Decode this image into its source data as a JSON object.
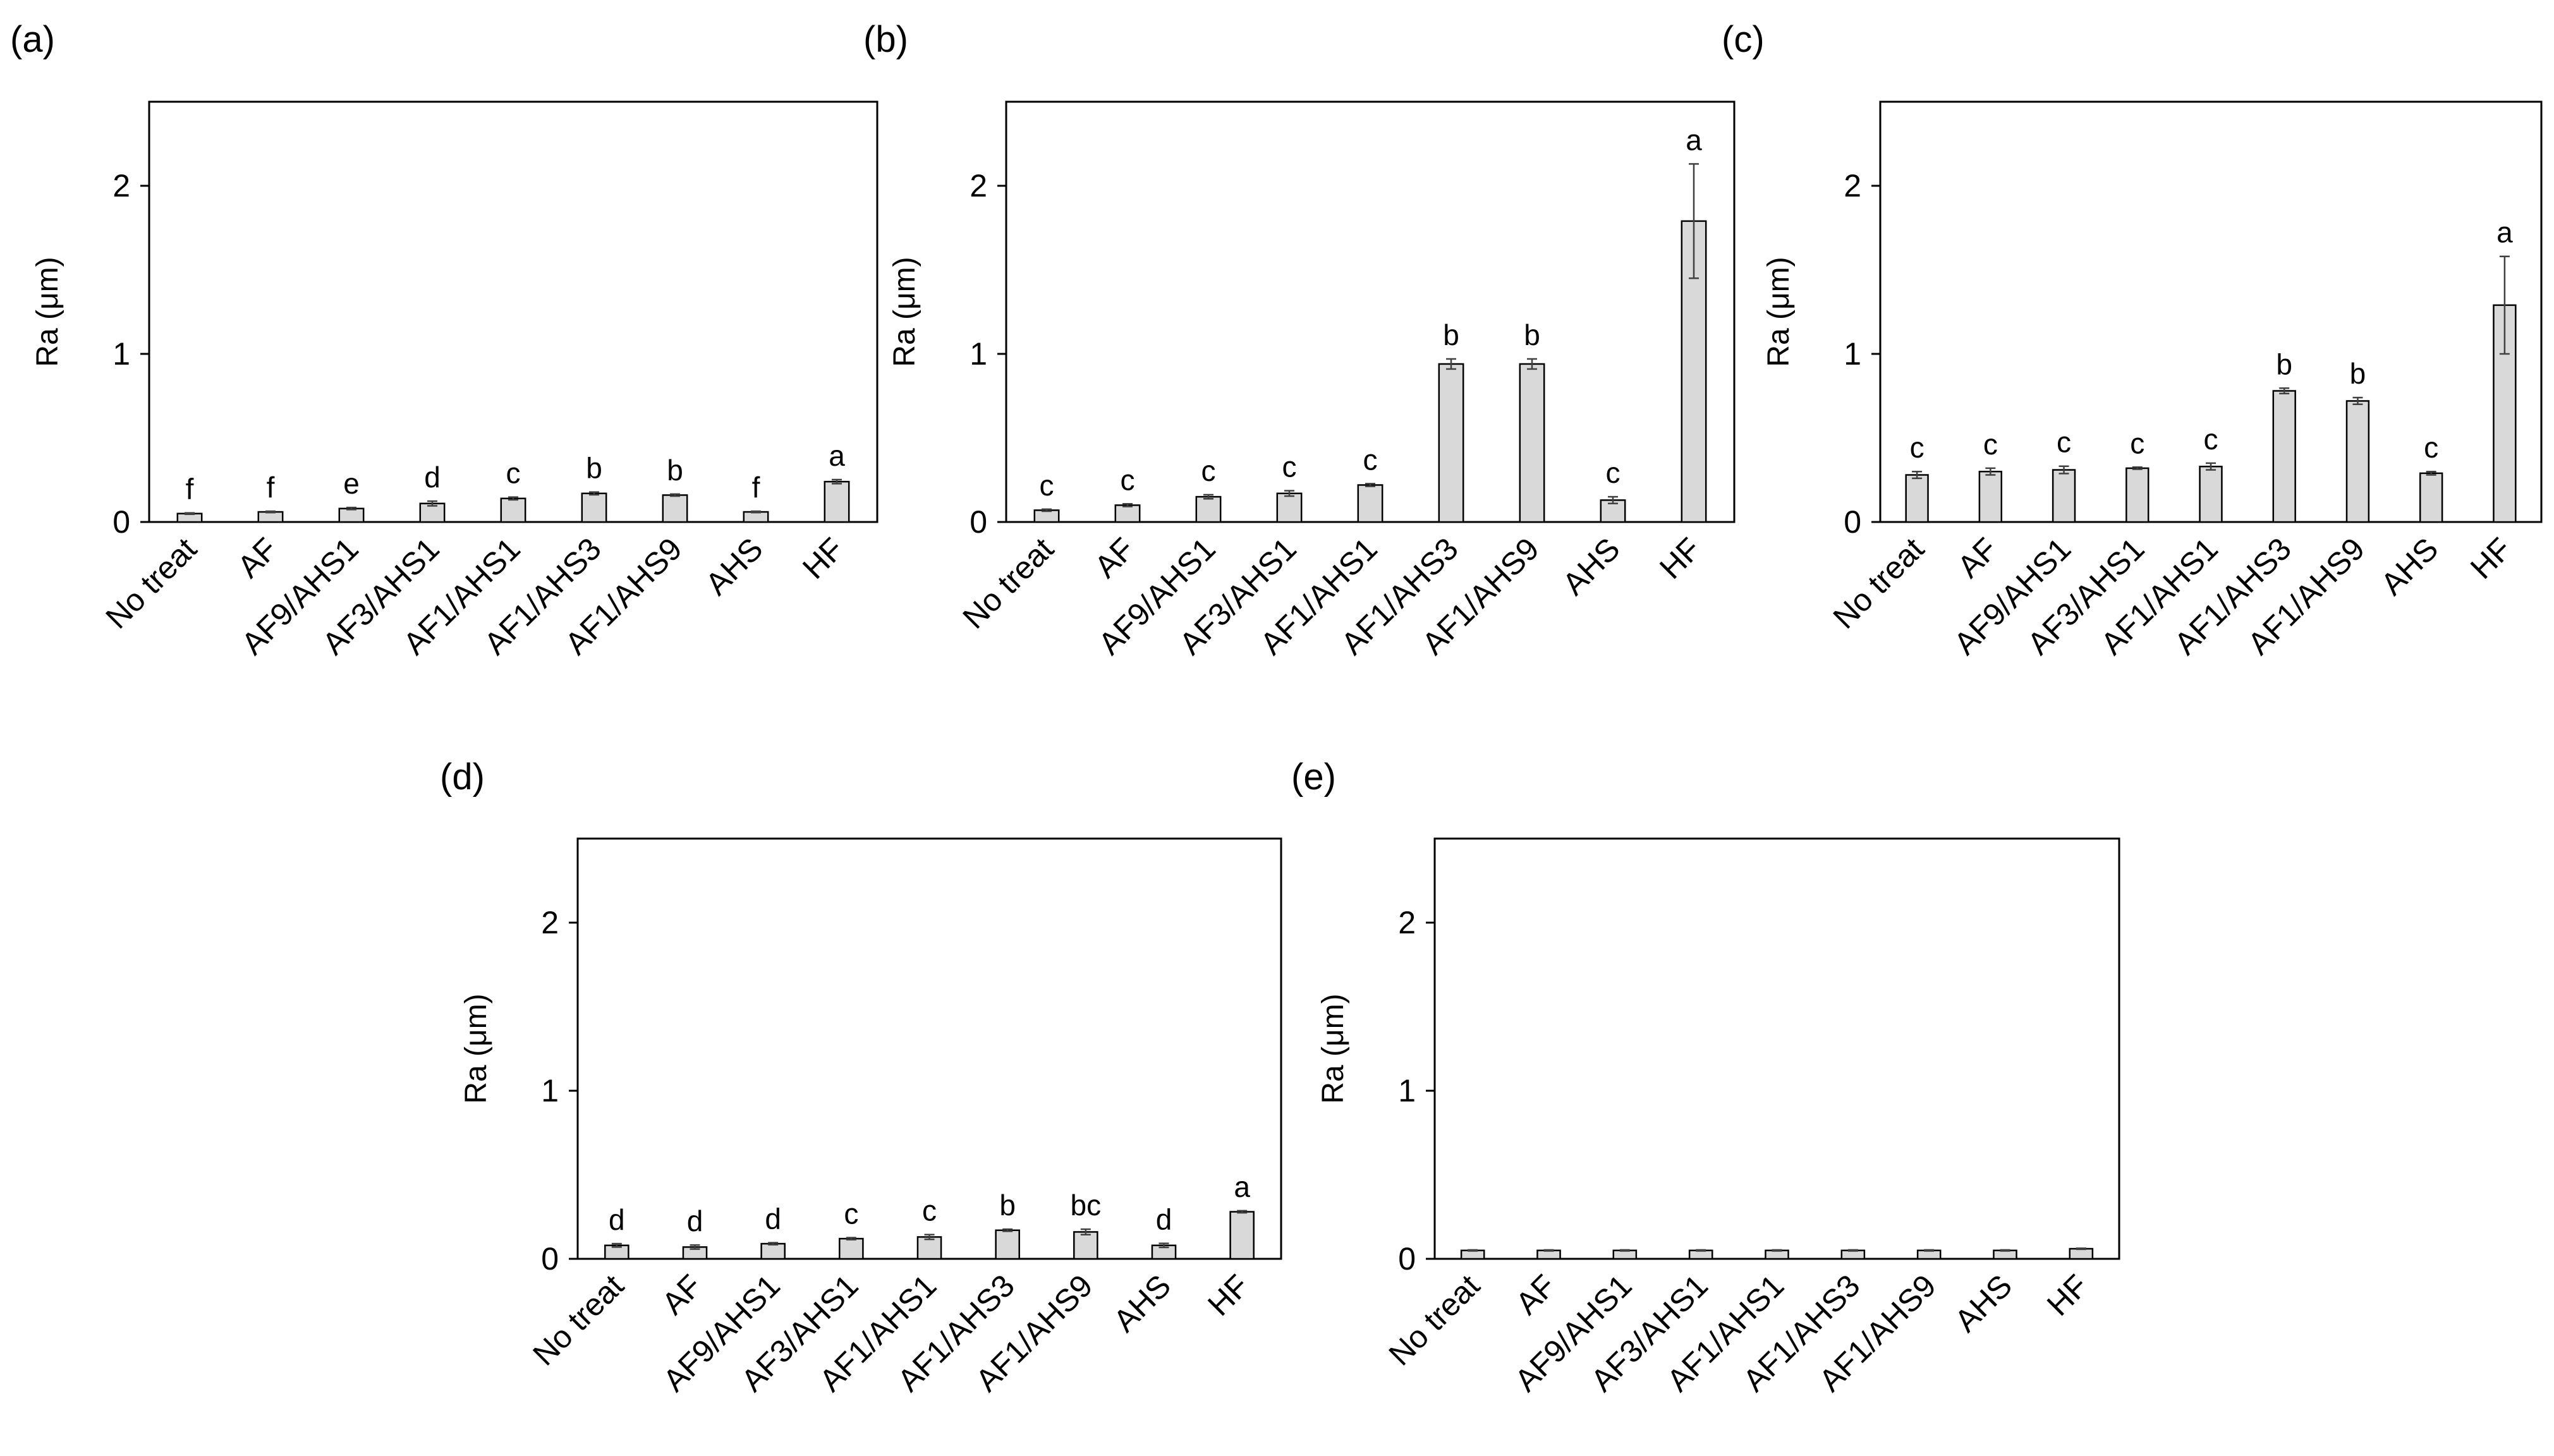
{
  "chart_data": [
    {
      "type": "bar",
      "panel": "(a)",
      "ylabel": "Ra (μm)",
      "xlabel": "",
      "ylim": [
        0,
        2.5
      ],
      "yticks": [
        0,
        1,
        2
      ],
      "categories": [
        "No treat",
        "AF",
        "AF9/AHS1",
        "AF3/AHS1",
        "AF1/AHS1",
        "AF1/AHS3",
        "AF1/AHS9",
        "AHS",
        "HF"
      ],
      "values": [
        0.05,
        0.06,
        0.08,
        0.11,
        0.14,
        0.17,
        0.16,
        0.06,
        0.24
      ],
      "errors": [
        0.004,
        0.004,
        0.006,
        0.014,
        0.008,
        0.008,
        0.006,
        0.004,
        0.012
      ],
      "letters": [
        "f",
        "f",
        "e",
        "d",
        "c",
        "b",
        "b",
        "f",
        "a"
      ]
    },
    {
      "type": "bar",
      "panel": "(b)",
      "ylabel": "Ra (μm)",
      "xlabel": "",
      "ylim": [
        0,
        2.5
      ],
      "yticks": [
        0,
        1,
        2
      ],
      "categories": [
        "No treat",
        "AF",
        "AF9/AHS1",
        "AF3/AHS1",
        "AF1/AHS1",
        "AF1/AHS3",
        "AF1/AHS9",
        "AHS",
        "HF"
      ],
      "values": [
        0.07,
        0.1,
        0.15,
        0.17,
        0.22,
        0.94,
        0.94,
        0.13,
        1.79
      ],
      "errors": [
        0.006,
        0.008,
        0.012,
        0.016,
        0.008,
        0.03,
        0.03,
        0.02,
        0.34
      ],
      "letters": [
        "c",
        "c",
        "c",
        "c",
        "c",
        "b",
        "b",
        "c",
        "a"
      ]
    },
    {
      "type": "bar",
      "panel": "(c)",
      "ylabel": "Ra (μm)",
      "xlabel": "",
      "ylim": [
        0,
        2.5
      ],
      "yticks": [
        0,
        1,
        2
      ],
      "categories": [
        "No treat",
        "AF",
        "AF9/AHS1",
        "AF3/AHS1",
        "AF1/AHS1",
        "AF1/AHS3",
        "AF1/AHS9",
        "AHS",
        "HF"
      ],
      "values": [
        0.28,
        0.3,
        0.31,
        0.32,
        0.33,
        0.78,
        0.72,
        0.29,
        1.29
      ],
      "errors": [
        0.02,
        0.02,
        0.022,
        0.006,
        0.02,
        0.016,
        0.02,
        0.01,
        0.29
      ],
      "letters": [
        "c",
        "c",
        "c",
        "c",
        "c",
        "b",
        "b",
        "c",
        "a"
      ]
    },
    {
      "type": "bar",
      "panel": "(d)",
      "ylabel": "Ra (μm)",
      "xlabel": "",
      "ylim": [
        0,
        2.5
      ],
      "yticks": [
        0,
        1,
        2
      ],
      "categories": [
        "No treat",
        "AF",
        "AF9/AHS1",
        "AF3/AHS1",
        "AF1/AHS1",
        "AF1/AHS3",
        "AF1/AHS9",
        "AHS",
        "HF"
      ],
      "values": [
        0.08,
        0.07,
        0.09,
        0.12,
        0.13,
        0.17,
        0.16,
        0.08,
        0.28
      ],
      "errors": [
        0.01,
        0.012,
        0.006,
        0.006,
        0.014,
        0.006,
        0.016,
        0.012,
        0.006
      ],
      "letters": [
        "d",
        "d",
        "d",
        "c",
        "c",
        "b",
        "bc",
        "d",
        "a"
      ]
    },
    {
      "type": "bar",
      "panel": "(e)",
      "ylabel": "Ra (μm)",
      "xlabel": "",
      "ylim": [
        0,
        2.5
      ],
      "yticks": [
        0,
        1,
        2
      ],
      "categories": [
        "No treat",
        "AF",
        "AF9/AHS1",
        "AF3/AHS1",
        "AF1/AHS1",
        "AF1/AHS3",
        "AF1/AHS9",
        "AHS",
        "HF"
      ],
      "values": [
        0.05,
        0.05,
        0.05,
        0.05,
        0.05,
        0.05,
        0.05,
        0.05,
        0.06
      ],
      "errors": [
        0.003,
        0.003,
        0.003,
        0.003,
        0.003,
        0.003,
        0.003,
        0.003,
        0.003
      ],
      "letters": [
        "",
        "",
        "",
        "",
        "",
        "",
        "",
        "",
        ""
      ]
    }
  ],
  "colors": {
    "bar_fill": "#d9d9d9",
    "bar_stroke": "#000000",
    "axis": "#000000",
    "error_bar": "#404040"
  }
}
